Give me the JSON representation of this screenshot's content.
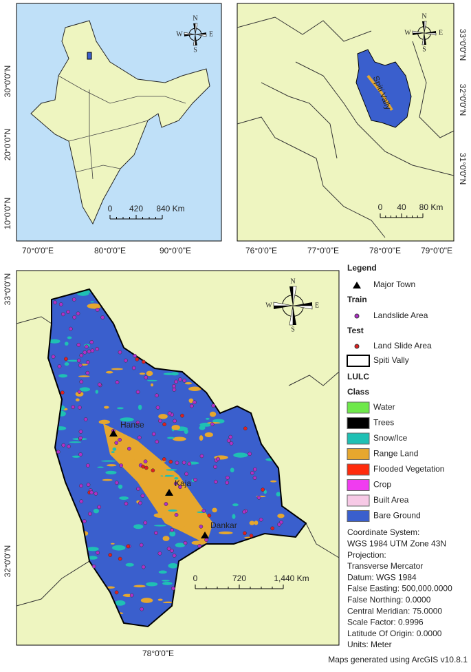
{
  "inset_india": {
    "lat_labels": [
      "30°0'0\"N",
      "20°0'0\"N",
      "10°0'0\"N"
    ],
    "lon_labels": [
      "70°0'0\"E",
      "80°0'0\"E",
      "90°0'0\"E"
    ],
    "scale": [
      "0",
      "420",
      "840 Km"
    ]
  },
  "inset_region": {
    "lat_labels": [
      "33°0'0\"N",
      "32°0'0\"N",
      "31°0'0\"N"
    ],
    "lon_labels": [
      "76°0'0\"E",
      "77°0'0\"E",
      "78°0'0\"E",
      "79°0'0\"E"
    ],
    "scale": [
      "0",
      "40",
      "80 Km"
    ],
    "area_label": "Spiti Vally"
  },
  "main_map": {
    "lat_labels": [
      "33°0'0\"N",
      "32°0'0\"N"
    ],
    "lon_labels": [
      "78°0'0\"E"
    ],
    "scale": [
      "0",
      "720",
      "1,440 Km"
    ],
    "towns": [
      "Hanse",
      "Kaja",
      "Dankar"
    ]
  },
  "compass": {
    "n": "N",
    "e": "E",
    "s": "S",
    "w": "W"
  },
  "legend": {
    "title": "Legend",
    "major_town": "Major Town",
    "train": "Train",
    "landslide_train": "Landslide Area",
    "test": "Test",
    "landslide_test": "Land Slide Area",
    "boundary": "Spiti Vally",
    "lulc": "LULC",
    "class": "Class",
    "classes": [
      {
        "label": "Water",
        "color": "#6ee84a"
      },
      {
        "label": "Trees",
        "color": "#000000"
      },
      {
        "label": "Snow/Ice",
        "color": "#1fc0b4"
      },
      {
        "label": "Range Land",
        "color": "#e6a72e"
      },
      {
        "label": "Flooded Vegetation",
        "color": "#ff2b0c"
      },
      {
        "label": "Crop",
        "color": "#f03cf0"
      },
      {
        "label": "Built Area",
        "color": "#f7c9e6"
      },
      {
        "label": "Bare Ground",
        "color": "#3a5fcd"
      }
    ]
  },
  "coordinate_info": [
    "Coordinate System:",
    "WGS 1984 UTM Zone 43N",
    "Projection:",
    "Transverse Mercator",
    "Datum: WGS 1984",
    "False Easting: 500,000.0000",
    "False Northing: 0.0000",
    "Central Meridian: 75.0000",
    "Scale Factor: 0.9996",
    "Latitude Of Origin: 0.0000",
    "Units: Meter"
  ],
  "footer": "Maps generated using ArcGIS v10.8.1"
}
